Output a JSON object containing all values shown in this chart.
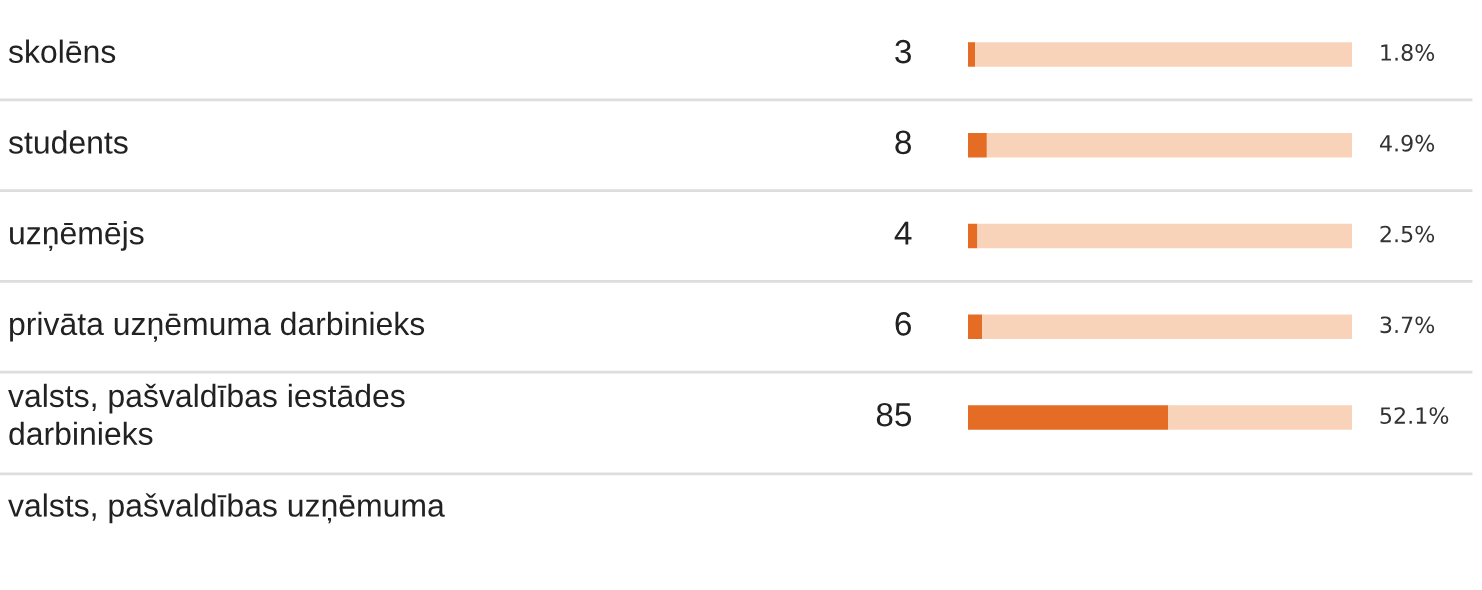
{
  "chart_data": {
    "type": "bar",
    "orientation": "horizontal",
    "stacked": true,
    "categories": [
      "skolēns",
      "students",
      "uzņēmējs",
      "privāta uzņēmuma darbinieks",
      "valsts, pašvaldības iestādes\ndarbinieks",
      "valsts, pašvaldības uzņēmuma"
    ],
    "series": [
      {
        "color": "#e46c24",
        "values": [
          3,
          8,
          4,
          6,
          85,
          null
        ],
        "value_labels": [
          "3",
          "8",
          "4",
          "6",
          "85",
          null
        ]
      },
      {
        "color": "#f9d3b9",
        "values": [
          160,
          155,
          159,
          157,
          78,
          null
        ]
      }
    ],
    "annotations": [
      "1.8%",
      "4.9%",
      "2.5%",
      "3.7%",
      "52.1%"
    ]
  }
}
